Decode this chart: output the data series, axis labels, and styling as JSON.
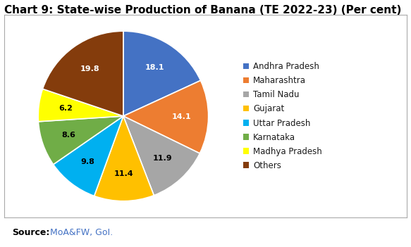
{
  "title": "Chart 9: State-wise Production of Banana (TE 2022-23) (Per cent)",
  "labels": [
    "Andhra Pradesh",
    "Maharashtra",
    "Tamil Nadu",
    "Gujarat",
    "Uttar Pradesh",
    "Karnataka",
    "Madhya Pradesh",
    "Others"
  ],
  "values": [
    18.1,
    14.1,
    11.9,
    11.4,
    9.8,
    8.6,
    6.2,
    19.8
  ],
  "colors": [
    "#4472C4",
    "#ED7D31",
    "#A6A6A6",
    "#FFC000",
    "#00B0F0",
    "#70AD47",
    "#FFFF00",
    "#843C0C"
  ],
  "autopct_values": [
    "18.1",
    "14.1",
    "11.9",
    "11.4",
    "9.8",
    "8.6",
    "6.2",
    "19.8"
  ],
  "label_colors": [
    "white",
    "white",
    "black",
    "black",
    "black",
    "black",
    "black",
    "white"
  ],
  "source_bold": "Source:",
  "source_text": " MoA&FW, GoI.",
  "background_color": "#ffffff",
  "title_fontsize": 11,
  "legend_fontsize": 8.5,
  "source_fontsize": 9
}
